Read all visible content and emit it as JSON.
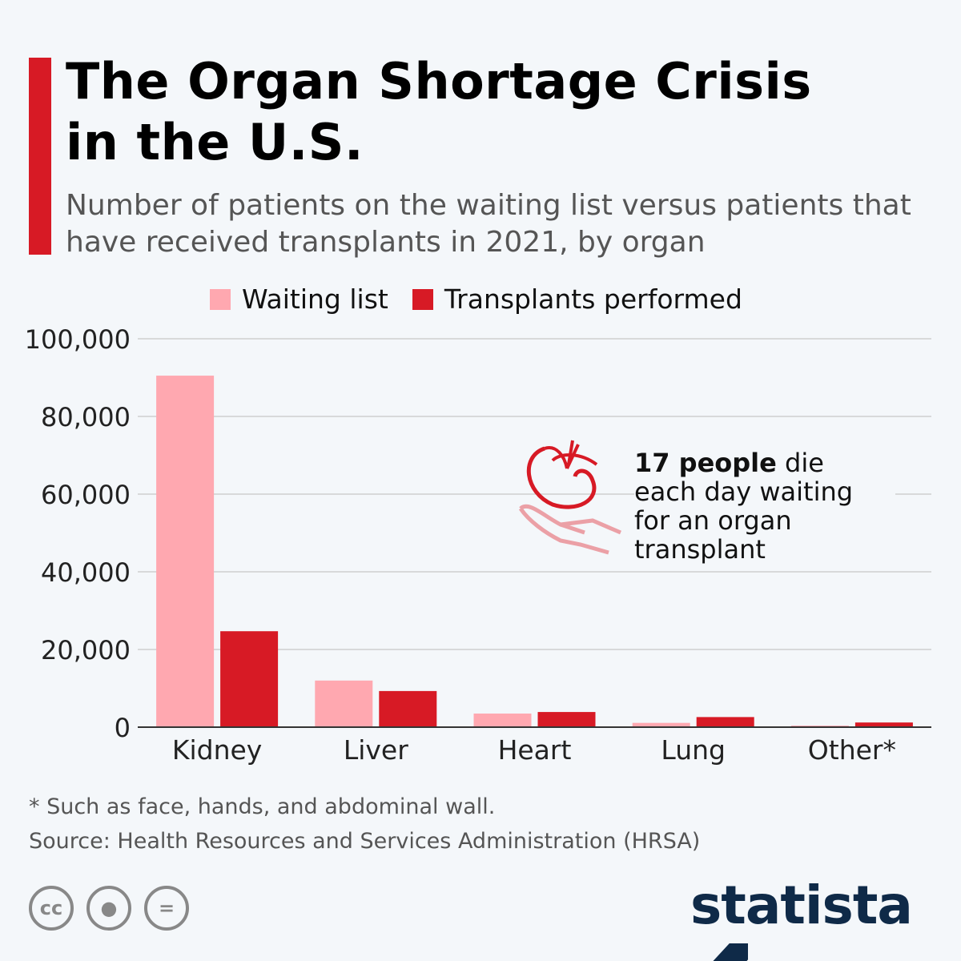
{
  "title": "The Organ Shortage Crisis in the U.S.",
  "title_lines": [
    "The Organ Shortage Crisis",
    "in the U.S."
  ],
  "subtitle": "Number of patients on the waiting list versus patients that have received transplants in 2021, by organ",
  "annotation": {
    "bold": "17 people",
    "rest": " die each day waiting for an organ transplant",
    "icon": "kidney-in-hand-icon"
  },
  "footnote": "* Such as face, hands, and abdominal wall.",
  "source": "Source: Health Resources and Services Administration (HRSA)",
  "logo": "statista",
  "colors": {
    "waiting": "#ffa8b0",
    "transplants": "#d71a25",
    "accent": "#d71a25"
  },
  "chart_data": {
    "type": "bar",
    "categories": [
      "Kidney",
      "Liver",
      "Heart",
      "Lung",
      "Other*"
    ],
    "series": [
      {
        "name": "Waiting list",
        "values": [
          90500,
          12000,
          3500,
          1100,
          400
        ]
      },
      {
        "name": "Transplants performed",
        "values": [
          24700,
          9300,
          3900,
          2600,
          1200
        ]
      }
    ],
    "ylim": [
      0,
      100000
    ],
    "yticks": [
      0,
      20000,
      40000,
      60000,
      80000,
      100000
    ],
    "ytick_labels": [
      "0",
      "20,000",
      "40,000",
      "60,000",
      "80,000",
      "100,000"
    ],
    "grid": true,
    "legend": "top"
  }
}
